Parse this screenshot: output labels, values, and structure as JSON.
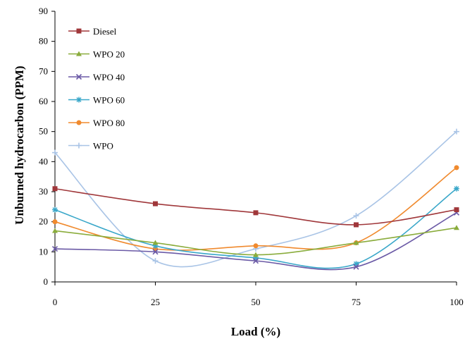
{
  "chart_data": {
    "type": "line",
    "xlabel": "Load (%)",
    "ylabel": "Unburned hydrocarbon (PPM)",
    "x": [
      0,
      25,
      50,
      75,
      100
    ],
    "xticks": [
      0,
      25,
      50,
      75,
      100
    ],
    "yticks": [
      0,
      10,
      20,
      30,
      40,
      50,
      60,
      70,
      80,
      90
    ],
    "xlim": [
      0,
      100
    ],
    "ylim": [
      0,
      90
    ],
    "grid": false,
    "legend_position": "top-left",
    "series": [
      {
        "name": "Diesel",
        "values": [
          31,
          26,
          23,
          19,
          24
        ],
        "color": "#a0373a",
        "marker": "square"
      },
      {
        "name": "WPO 20",
        "values": [
          17,
          13,
          9,
          13,
          18
        ],
        "color": "#8aac3c",
        "marker": "triangle"
      },
      {
        "name": "WPO 40",
        "values": [
          11,
          10,
          7,
          5,
          23
        ],
        "color": "#6b5aa6",
        "marker": "x"
      },
      {
        "name": "WPO 60",
        "values": [
          24,
          12,
          8,
          6,
          31
        ],
        "color": "#39a7c9",
        "marker": "star"
      },
      {
        "name": "WPO 80",
        "values": [
          20,
          11,
          12,
          13,
          38
        ],
        "color": "#f08a2e",
        "marker": "circle"
      },
      {
        "name": "WPO",
        "values": [
          43,
          7,
          11,
          22,
          50
        ],
        "color": "#a9c4e6",
        "marker": "plus"
      }
    ]
  }
}
